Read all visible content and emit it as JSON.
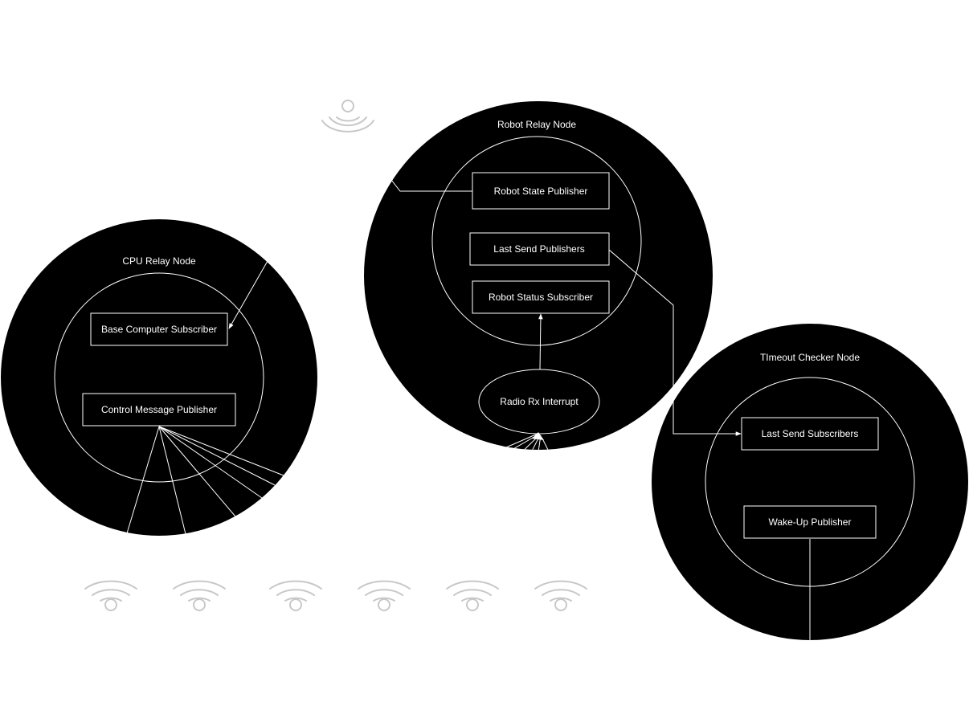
{
  "diagram": {
    "colors": {
      "background": "#ffffff",
      "node_fill": "#000000",
      "line": "#ffffff",
      "wifi_icon": "#c8c8c8"
    },
    "nodes": {
      "cpu_relay": {
        "title": "CPU Relay Node",
        "boxes": {
          "base_computer_subscriber": "Base Computer Subscriber",
          "control_message_publisher": "Control Message Publisher"
        }
      },
      "robot_relay": {
        "title": "Robot Relay Node",
        "boxes": {
          "robot_state_publisher": "Robot State Publisher",
          "last_send_publishers": "Last Send Publishers",
          "robot_status_subscriber": "Robot Status Subscriber"
        },
        "interrupt": "Radio Rx Interrupt"
      },
      "timeout_checker": {
        "title": "TImeout Checker Node",
        "boxes": {
          "last_send_subscribers": "Last Send Subscribers",
          "wake_up_publisher": "Wake-Up Publisher"
        }
      }
    },
    "icons": {
      "base_station_radio": "wifi-broadcast-icon",
      "robot_radios": [
        "wifi-icon",
        "wifi-icon",
        "wifi-icon",
        "wifi-icon",
        "wifi-icon",
        "wifi-icon"
      ]
    }
  }
}
